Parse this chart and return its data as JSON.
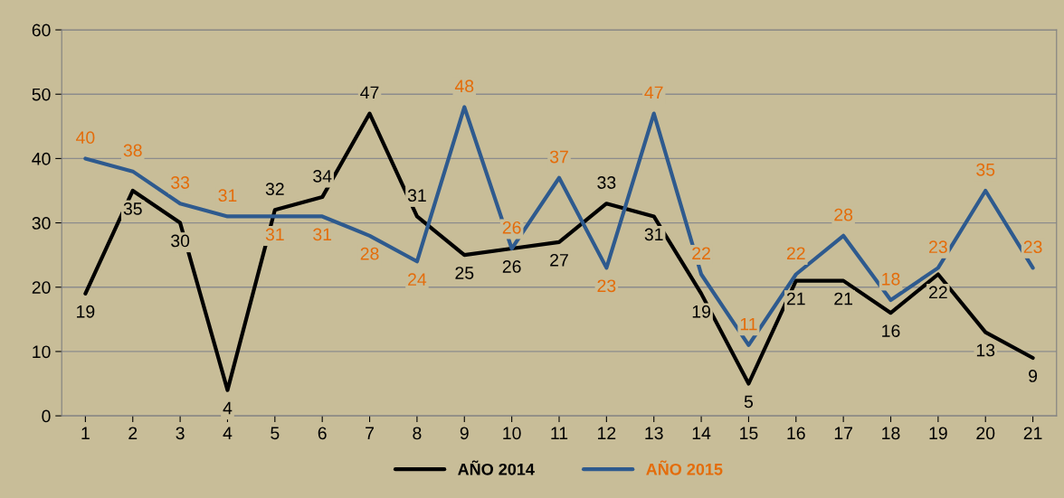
{
  "chart_data": {
    "type": "line",
    "categories": [
      "1",
      "2",
      "3",
      "4",
      "5",
      "6",
      "7",
      "8",
      "9",
      "10",
      "11",
      "12",
      "13",
      "14",
      "15",
      "16",
      "17",
      "18",
      "19",
      "20",
      "21"
    ],
    "series": [
      {
        "name": "AÑO 2014",
        "color": "#000000",
        "values": [
          19,
          35,
          30,
          4,
          32,
          34,
          47,
          31,
          25,
          26,
          27,
          33,
          31,
          19,
          5,
          21,
          21,
          16,
          22,
          13,
          9
        ]
      },
      {
        "name": "AÑO 2015",
        "color": "#2e5a8e",
        "values": [
          40,
          38,
          33,
          31,
          31,
          31,
          28,
          24,
          48,
          26,
          37,
          23,
          47,
          22,
          11,
          22,
          28,
          18,
          23,
          35,
          23
        ]
      }
    ],
    "ylim": [
      0,
      60
    ],
    "yticks": [
      0,
      10,
      20,
      30,
      40,
      50,
      60
    ],
    "grid": "y",
    "legend": "bottom",
    "data_labels": true,
    "marker": "none",
    "line_style": "solid"
  }
}
